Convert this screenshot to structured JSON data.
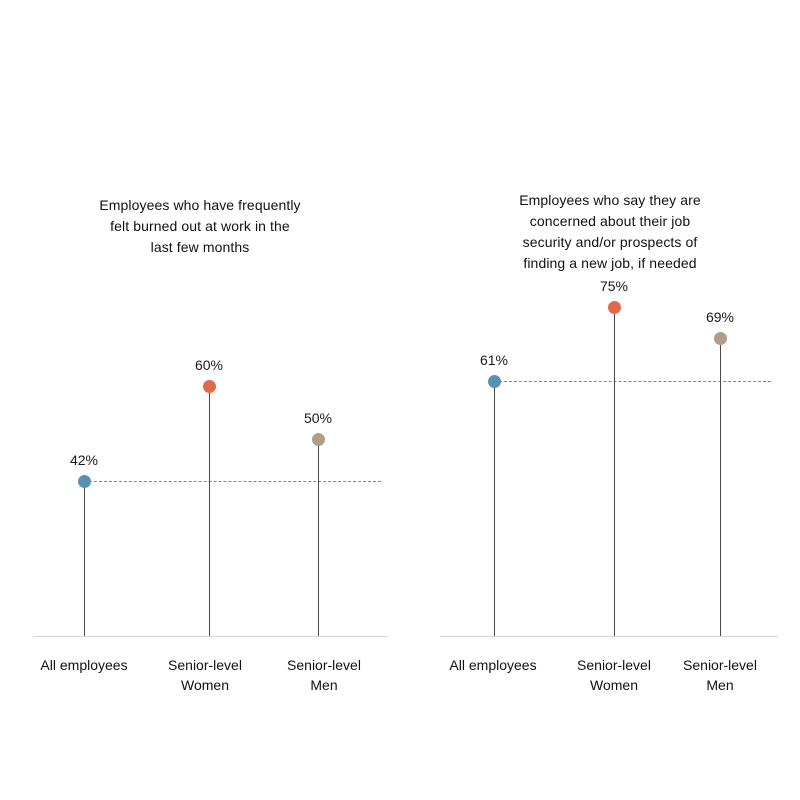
{
  "colors": {
    "all": "#5a91b3",
    "women": "#e06a4a",
    "men": "#b09e86",
    "stem": "#4a4a4a",
    "baseline": "#d6d6d6",
    "reference_line": "#5b93b5"
  },
  "chart_data": [
    {
      "type": "lollipop",
      "title": "Employees who have frequently felt burned out at work in the last few months",
      "title_lines": [
        "Employees who have frequently",
        "felt burned out at work in the",
        "last few months"
      ],
      "categories": [
        "All employees",
        "Senior-level Women",
        "Senior-level Men"
      ],
      "category_lines": [
        [
          "All employees"
        ],
        [
          "Senior-level",
          "Women"
        ],
        [
          "Senior-level",
          "Men"
        ]
      ],
      "values": [
        42,
        60,
        50
      ],
      "value_labels": [
        "42%",
        "60%",
        "50%"
      ],
      "reference_line": {
        "value": 42,
        "style": "dashed",
        "label": "All employees"
      },
      "xlabel": "",
      "ylabel": "",
      "unit": "%",
      "grid": false,
      "legend": "none"
    },
    {
      "type": "lollipop",
      "title": "Employees who say they are concerned about their job security and/or prospects of finding a new job, if needed",
      "title_lines": [
        "Employees who say they are",
        "concerned about their job",
        "security and/or prospects of",
        "finding a new job, if needed"
      ],
      "categories": [
        "All employees",
        "Senior-level Women",
        "Senior-level Men"
      ],
      "category_lines": [
        [
          "All employees"
        ],
        [
          "Senior-level",
          "Women"
        ],
        [
          "Senior-level",
          "Men"
        ]
      ],
      "values": [
        61,
        75,
        69
      ],
      "value_labels": [
        "61%",
        "75%",
        "69%"
      ],
      "reference_line": {
        "value": 61,
        "style": "dashed",
        "label": "All employees"
      },
      "xlabel": "",
      "ylabel": "",
      "unit": "%",
      "grid": false,
      "legend": "none"
    }
  ]
}
